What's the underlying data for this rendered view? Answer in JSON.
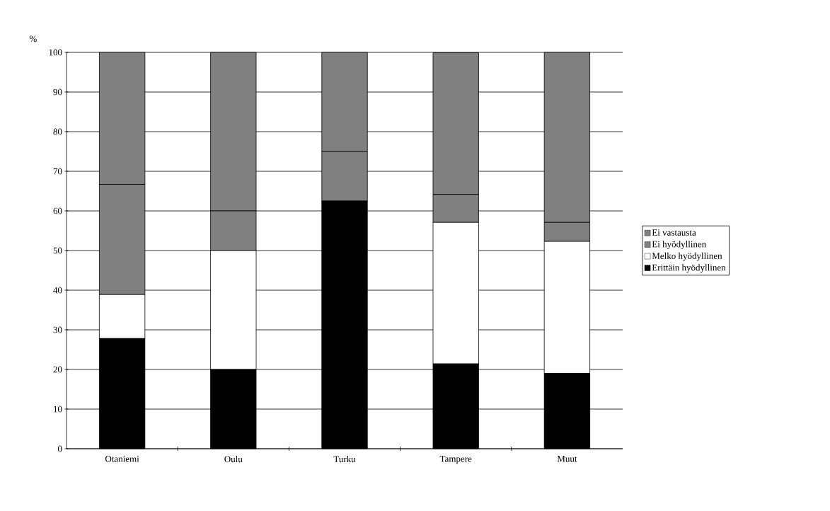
{
  "chart_data": {
    "type": "bar",
    "stacked": true,
    "ylabel": "%",
    "categories": [
      "Otaniemi",
      "Oulu",
      "Turku",
      "Tampere",
      "Muut"
    ],
    "series": [
      {
        "name": "Erittäin hyödyllinen",
        "color": "#000000",
        "values": [
          27.8,
          20,
          62.5,
          21.4,
          19.0
        ]
      },
      {
        "name": "Melko hyödyllinen",
        "color": "#ffffff",
        "values": [
          11.1,
          30,
          0,
          35.7,
          33.3
        ]
      },
      {
        "name": "Ei hyödyllinen",
        "color": "#808080",
        "values": [
          27.8,
          10,
          12.5,
          7.1,
          4.8
        ]
      },
      {
        "name": "Ei vastausta",
        "color": "#808080",
        "values": [
          33.3,
          40,
          25,
          35.7,
          42.9
        ]
      }
    ],
    "ylim": [
      0,
      100
    ],
    "yticks": [
      0,
      10,
      20,
      30,
      40,
      50,
      60,
      70,
      80,
      90,
      100
    ],
    "grid": "y",
    "legend": "right"
  }
}
